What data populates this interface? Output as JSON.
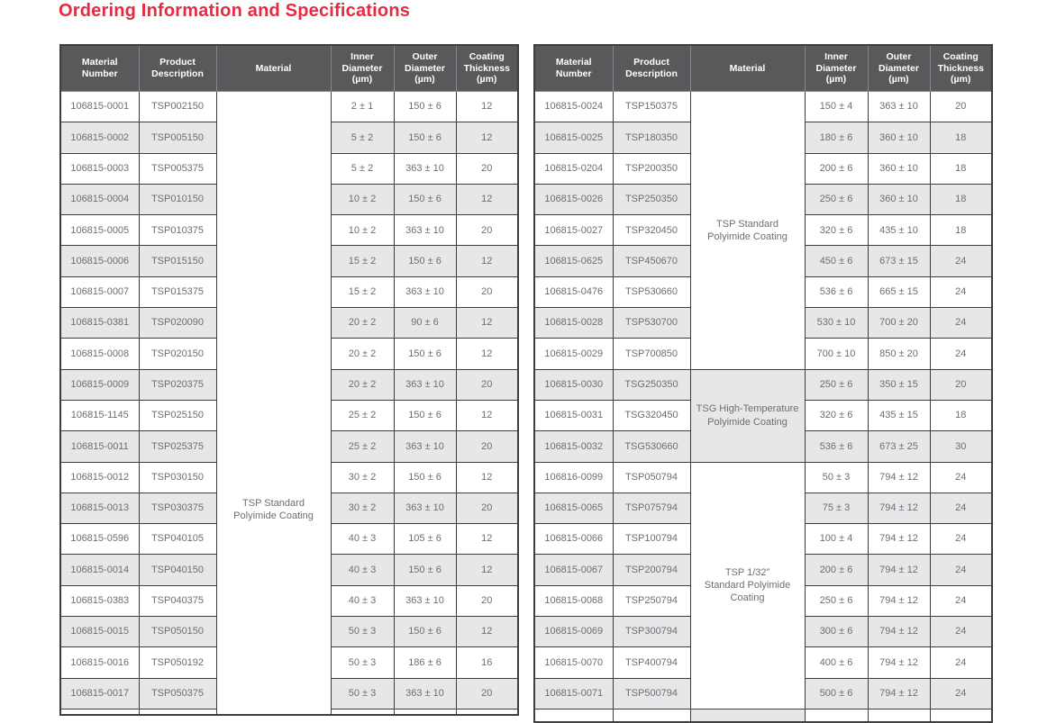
{
  "title": "Ordering Information and Specifications",
  "colors": {
    "accent_red": "#e52a42",
    "header_bg": "#58595b",
    "stripe_gray": "#e6e7e8",
    "cell_text": "#6d6e71",
    "grid_line": "#3c3d3f"
  },
  "columns": [
    "Material\nNumber",
    "Product\nDescription",
    "Material",
    "Inner\nDiameter\n(µm)",
    "Outer\nDiameter\n(µm)",
    "Coating\nThickness\n(µm)"
  ],
  "tables": {
    "left": {
      "partial_row": true,
      "material_sections": [
        {
          "start": 0,
          "rows": 21,
          "label": "TSP Standard\nPolyimide Coating",
          "shade": "light",
          "offset": true
        }
      ],
      "rows": [
        {
          "material_number": "106815-0001",
          "product_description": "TSP002150",
          "inner_diameter": "2 ± 1",
          "outer_diameter": "150 ± 6",
          "coating_thickness": "12"
        },
        {
          "material_number": "106815-0002",
          "product_description": "TSP005150",
          "inner_diameter": "5 ± 2",
          "outer_diameter": "150 ± 6",
          "coating_thickness": "12"
        },
        {
          "material_number": "106815-0003",
          "product_description": "TSP005375",
          "inner_diameter": "5 ± 2",
          "outer_diameter": "363 ± 10",
          "coating_thickness": "20"
        },
        {
          "material_number": "106815-0004",
          "product_description": "TSP010150",
          "inner_diameter": "10 ± 2",
          "outer_diameter": "150 ± 6",
          "coating_thickness": "12"
        },
        {
          "material_number": "106815-0005",
          "product_description": "TSP010375",
          "inner_diameter": "10 ± 2",
          "outer_diameter": "363 ± 10",
          "coating_thickness": "20"
        },
        {
          "material_number": "106815-0006",
          "product_description": "TSP015150",
          "inner_diameter": "15 ± 2",
          "outer_diameter": "150 ± 6",
          "coating_thickness": "12"
        },
        {
          "material_number": "106815-0007",
          "product_description": "TSP015375",
          "inner_diameter": "15 ± 2",
          "outer_diameter": "363 ± 10",
          "coating_thickness": "20"
        },
        {
          "material_number": "106815-0381",
          "product_description": "TSP020090",
          "inner_diameter": "20 ± 2",
          "outer_diameter": "90 ± 6",
          "coating_thickness": "12"
        },
        {
          "material_number": "106815-0008",
          "product_description": "TSP020150",
          "inner_diameter": "20 ± 2",
          "outer_diameter": "150 ± 6",
          "coating_thickness": "12"
        },
        {
          "material_number": "106815-0009",
          "product_description": "TSP020375",
          "inner_diameter": "20 ± 2",
          "outer_diameter": "363 ± 10",
          "coating_thickness": "20"
        },
        {
          "material_number": "106815-1145",
          "product_description": "TSP025150",
          "inner_diameter": "25 ± 2",
          "outer_diameter": "150 ± 6",
          "coating_thickness": "12"
        },
        {
          "material_number": "106815-0011",
          "product_description": "TSP025375",
          "inner_diameter": "25 ± 2",
          "outer_diameter": "363 ± 10",
          "coating_thickness": "20"
        },
        {
          "material_number": "106815-0012",
          "product_description": "TSP030150",
          "inner_diameter": "30 ± 2",
          "outer_diameter": "150 ± 6",
          "coating_thickness": "12"
        },
        {
          "material_number": "106815-0013",
          "product_description": "TSP030375",
          "inner_diameter": "30 ± 2",
          "outer_diameter": "363 ± 10",
          "coating_thickness": "20"
        },
        {
          "material_number": "106815-0596",
          "product_description": "TSP040105",
          "inner_diameter": "40 ± 3",
          "outer_diameter": "105 ± 6",
          "coating_thickness": "12"
        },
        {
          "material_number": "106815-0014",
          "product_description": "TSP040150",
          "inner_diameter": "40 ± 3",
          "outer_diameter": "150 ± 6",
          "coating_thickness": "12"
        },
        {
          "material_number": "106815-0383",
          "product_description": "TSP040375",
          "inner_diameter": "40 ± 3",
          "outer_diameter": "363 ± 10",
          "coating_thickness": "20"
        },
        {
          "material_number": "106815-0015",
          "product_description": "TSP050150",
          "inner_diameter": "50 ± 3",
          "outer_diameter": "150 ± 6",
          "coating_thickness": "12"
        },
        {
          "material_number": "106815-0016",
          "product_description": "TSP050192",
          "inner_diameter": "50 ± 3",
          "outer_diameter": "186 ± 6",
          "coating_thickness": "16"
        },
        {
          "material_number": "106815-0017",
          "product_description": "TSP050375",
          "inner_diameter": "50 ± 3",
          "outer_diameter": "363 ± 10",
          "coating_thickness": "20"
        }
      ]
    },
    "right": {
      "partial_row": true,
      "material_sections": [
        {
          "start": 0,
          "rows": 9,
          "label": "TSP Standard\nPolyimide Coating",
          "shade": "light"
        },
        {
          "start": 9,
          "rows": 3,
          "label": "TSG High-Temperature\nPolyimide Coating",
          "shade": "gray"
        },
        {
          "start": 12,
          "rows": 8,
          "label": "TSP 1/32”\nStandard Polyimide\nCoating",
          "shade": "light"
        },
        {
          "start": 20,
          "rows": 1,
          "label": "",
          "shade": "gray"
        }
      ],
      "rows": [
        {
          "material_number": "106815-0024",
          "product_description": "TSP150375",
          "inner_diameter": "150 ± 4",
          "outer_diameter": "363 ± 10",
          "coating_thickness": "20"
        },
        {
          "material_number": "106815-0025",
          "product_description": "TSP180350",
          "inner_diameter": "180 ± 6",
          "outer_diameter": "360 ± 10",
          "coating_thickness": "18"
        },
        {
          "material_number": "106815-0204",
          "product_description": "TSP200350",
          "inner_diameter": "200 ± 6",
          "outer_diameter": "360 ± 10",
          "coating_thickness": "18"
        },
        {
          "material_number": "106815-0026",
          "product_description": "TSP250350",
          "inner_diameter": "250 ± 6",
          "outer_diameter": "360 ± 10",
          "coating_thickness": "18"
        },
        {
          "material_number": "106815-0027",
          "product_description": "TSP320450",
          "inner_diameter": "320 ± 6",
          "outer_diameter": "435 ± 10",
          "coating_thickness": "18"
        },
        {
          "material_number": "106815-0625",
          "product_description": "TSP450670",
          "inner_diameter": "450 ± 6",
          "outer_diameter": "673 ± 15",
          "coating_thickness": "24"
        },
        {
          "material_number": "106815-0476",
          "product_description": "TSP530660",
          "inner_diameter": "536 ± 6",
          "outer_diameter": "665 ± 15",
          "coating_thickness": "24"
        },
        {
          "material_number": "106815-0028",
          "product_description": "TSP530700",
          "inner_diameter": "530 ± 10",
          "outer_diameter": "700 ± 20",
          "coating_thickness": "24"
        },
        {
          "material_number": "106815-0029",
          "product_description": "TSP700850",
          "inner_diameter": "700 ± 10",
          "outer_diameter": "850 ± 20",
          "coating_thickness": "24"
        },
        {
          "material_number": "106815-0030",
          "product_description": "TSG250350",
          "inner_diameter": "250 ± 6",
          "outer_diameter": "350 ± 15",
          "coating_thickness": "20"
        },
        {
          "material_number": "106815-0031",
          "product_description": "TSG320450",
          "inner_diameter": "320 ± 6",
          "outer_diameter": "435 ± 15",
          "coating_thickness": "18"
        },
        {
          "material_number": "106815-0032",
          "product_description": "TSG530660",
          "inner_diameter": "536 ± 6",
          "outer_diameter": "673 ± 25",
          "coating_thickness": "30"
        },
        {
          "material_number": "106816-0099",
          "product_description": "TSP050794",
          "inner_diameter": "50 ± 3",
          "outer_diameter": "794 ± 12",
          "coating_thickness": "24"
        },
        {
          "material_number": "106815-0065",
          "product_description": "TSP075794",
          "inner_diameter": "75 ± 3",
          "outer_diameter": "794 ± 12",
          "coating_thickness": "24"
        },
        {
          "material_number": "106815-0066",
          "product_description": "TSP100794",
          "inner_diameter": "100 ± 4",
          "outer_diameter": "794 ± 12",
          "coating_thickness": "24"
        },
        {
          "material_number": "106815-0067",
          "product_description": "TSP200794",
          "inner_diameter": "200 ± 6",
          "outer_diameter": "794 ± 12",
          "coating_thickness": "24"
        },
        {
          "material_number": "106815-0068",
          "product_description": "TSP250794",
          "inner_diameter": "250 ± 6",
          "outer_diameter": "794 ± 12",
          "coating_thickness": "24"
        },
        {
          "material_number": "106815-0069",
          "product_description": "TSP300794",
          "inner_diameter": "300 ± 6",
          "outer_diameter": "794 ± 12",
          "coating_thickness": "24"
        },
        {
          "material_number": "106815-0070",
          "product_description": "TSP400794",
          "inner_diameter": "400 ± 6",
          "outer_diameter": "794 ± 12",
          "coating_thickness": "24"
        },
        {
          "material_number": "106815-0071",
          "product_description": "TSP500794",
          "inner_diameter": "500 ± 6",
          "outer_diameter": "794 ± 12",
          "coating_thickness": "24"
        }
      ]
    }
  }
}
